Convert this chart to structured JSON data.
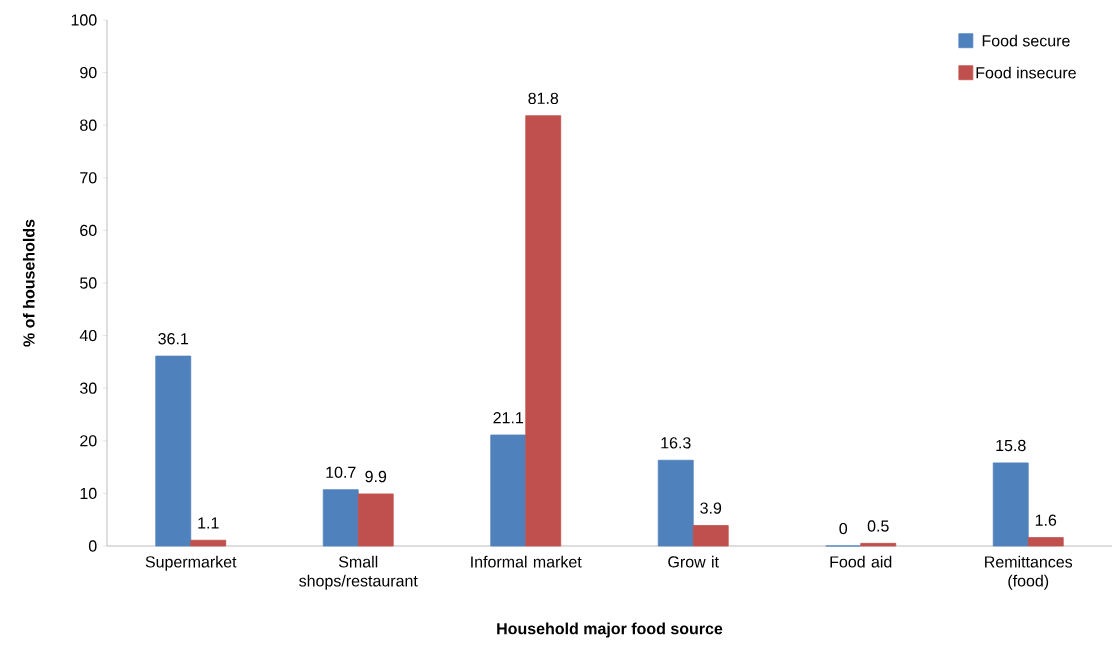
{
  "chart_data": {
    "type": "bar",
    "xlabel": "Household major food source",
    "ylabel": "% of households",
    "categories": [
      "Supermarket",
      "Small shops/restaurant",
      "Informal market",
      "Grow it",
      "Food aid",
      "Remittances (food)"
    ],
    "series": [
      {
        "name": "Food secure",
        "color": "#4f81bd",
        "values": [
          36.1,
          10.7,
          21.1,
          16.3,
          0,
          15.8
        ]
      },
      {
        "name": "Food insecure",
        "color": "#c0504d",
        "values": [
          1.1,
          9.9,
          81.8,
          3.9,
          0.5,
          1.6
        ]
      }
    ],
    "ylim": [
      0,
      100
    ],
    "yticks": [
      0,
      10,
      20,
      30,
      40,
      50,
      60,
      70,
      80,
      90,
      100
    ],
    "legend": "top right",
    "data_labels": true
  }
}
